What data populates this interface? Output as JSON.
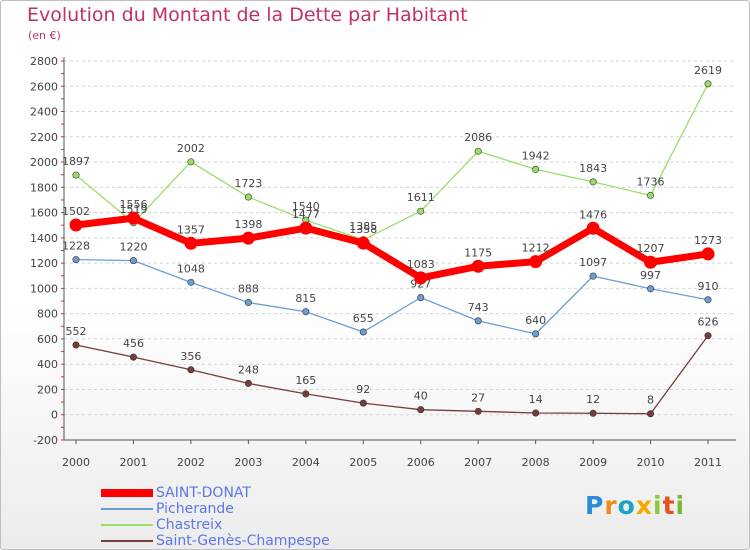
{
  "title": "Evolution du Montant de la Dette par Habitant",
  "subtitle": "(en €)",
  "logo_text": "Proxiti",
  "chart_data": {
    "type": "line",
    "title": "Evolution du Montant de la Dette par Habitant",
    "subtitle": "(en €)",
    "xlabel": "",
    "ylabel": "",
    "x": [
      "2000",
      "2001",
      "2002",
      "2003",
      "2004",
      "2005",
      "2006",
      "2007",
      "2008",
      "2009",
      "2010",
      "2011"
    ],
    "ylim": [
      -200,
      2800
    ],
    "yticks": [
      "-200",
      "0",
      "200",
      "400",
      "600",
      "800",
      "1000",
      "1200",
      "1400",
      "1600",
      "1800",
      "2000",
      "2200",
      "2400",
      "2600",
      "2800"
    ],
    "grid": "horizontal dashed",
    "legend_position": "bottom-left",
    "series": [
      {
        "name": "SAINT-DONAT",
        "color": "#ff0000",
        "emphasis": "thick",
        "values": [
          1502,
          1556,
          1357,
          1398,
          1477,
          1358,
          1083,
          1175,
          1212,
          1476,
          1207,
          1273
        ]
      },
      {
        "name": "Picherande",
        "color": "#6a9fd4",
        "emphasis": "thin",
        "values": [
          1228,
          1220,
          1048,
          888,
          815,
          655,
          927,
          743,
          640,
          1097,
          997,
          910
        ]
      },
      {
        "name": "Chastreix",
        "color": "#99dd66",
        "emphasis": "thin",
        "values": [
          1897,
          1519,
          2002,
          1723,
          1540,
          1385,
          1611,
          2086,
          1942,
          1843,
          1736,
          2619
        ]
      },
      {
        "name": "Saint-Genès-Champespe",
        "color": "#7a3b3b",
        "emphasis": "thin",
        "values": [
          552,
          456,
          356,
          248,
          165,
          92,
          40,
          27,
          14,
          12,
          8,
          626
        ]
      }
    ]
  }
}
